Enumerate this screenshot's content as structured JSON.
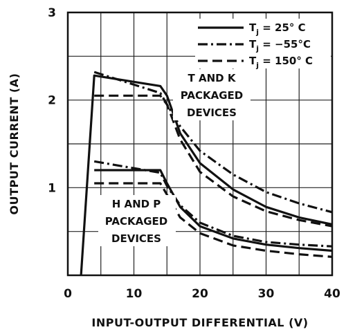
{
  "chart_data": {
    "type": "line",
    "title": "",
    "xlabel": "INPUT-OUTPUT DIFFERENTIAL (V)",
    "ylabel": "OUTPUT CURRENT (A)",
    "xlim": [
      0,
      40
    ],
    "ylim": [
      0,
      3
    ],
    "xticks": [
      "0",
      "10",
      "20",
      "30",
      "40"
    ],
    "yticks": [
      "0",
      "1",
      "2",
      "3"
    ],
    "grid": true,
    "legend_position": "top-right",
    "legend": [
      {
        "style": "solid",
        "label_main": "T",
        "label_sub": "j",
        "label_rest": " = 25° C"
      },
      {
        "style": "dash-dot",
        "label_main": "T",
        "label_sub": "j",
        "label_rest": " = −55°C"
      },
      {
        "style": "dash",
        "label_main": "T",
        "label_sub": "j",
        "label_rest": " = 150° C"
      }
    ],
    "annotations": [
      {
        "lines": [
          "T AND K",
          "PACKAGED",
          "DEVICES"
        ]
      },
      {
        "lines": [
          "H AND P",
          "PACKAGED",
          "DEVICES"
        ]
      }
    ],
    "series": [
      {
        "group": "T and K",
        "style": "solid",
        "x": [
          2,
          4,
          14,
          15,
          17,
          20,
          25,
          30,
          35,
          40
        ],
        "y": [
          0,
          2.28,
          2.16,
          2.05,
          1.62,
          1.28,
          0.98,
          0.78,
          0.66,
          0.58
        ]
      },
      {
        "group": "T and K",
        "style": "dash-dot",
        "x": [
          4,
          14,
          15,
          17,
          20,
          25,
          30,
          35,
          40
        ],
        "y": [
          2.32,
          2.08,
          1.95,
          1.7,
          1.42,
          1.15,
          0.95,
          0.82,
          0.72
        ]
      },
      {
        "group": "T and K",
        "style": "dash",
        "x": [
          4,
          14,
          15,
          17,
          20,
          25,
          30,
          35,
          40
        ],
        "y": [
          2.05,
          2.05,
          1.95,
          1.55,
          1.18,
          0.9,
          0.73,
          0.63,
          0.56
        ]
      },
      {
        "group": "H and P",
        "style": "solid",
        "x": [
          4,
          14,
          15,
          17,
          20,
          25,
          30,
          35,
          40
        ],
        "y": [
          1.2,
          1.2,
          1.05,
          0.78,
          0.56,
          0.42,
          0.35,
          0.31,
          0.28
        ]
      },
      {
        "group": "H and P",
        "style": "dash-dot",
        "x": [
          4,
          14,
          15,
          17,
          20,
          25,
          30,
          35,
          40
        ],
        "y": [
          1.3,
          1.17,
          1.02,
          0.8,
          0.6,
          0.45,
          0.38,
          0.35,
          0.33
        ]
      },
      {
        "group": "H and P",
        "style": "dash",
        "x": [
          4,
          14,
          15,
          17,
          20,
          25,
          30,
          35,
          40
        ],
        "y": [
          1.05,
          1.05,
          0.92,
          0.66,
          0.48,
          0.34,
          0.28,
          0.24,
          0.21
        ]
      }
    ]
  }
}
